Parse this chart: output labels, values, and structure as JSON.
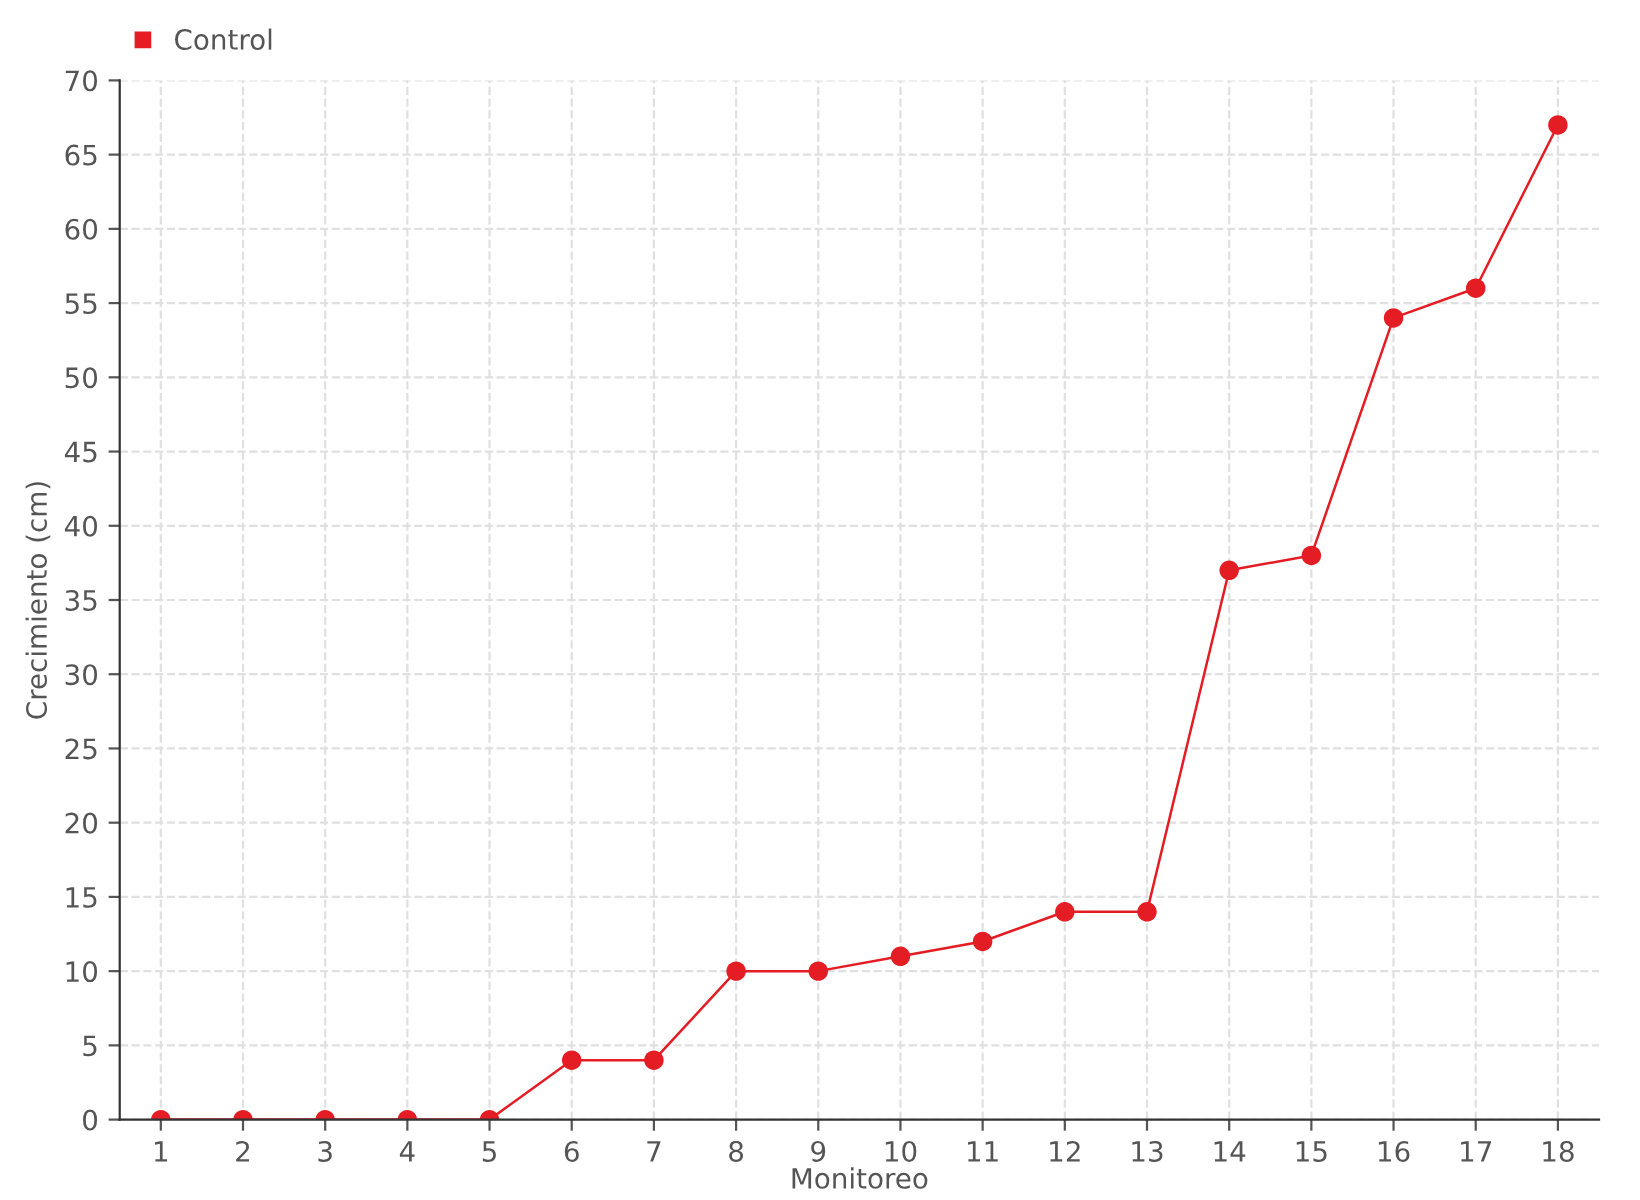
{
  "chart_data": {
    "type": "line",
    "xlabel": "Monitoreo",
    "ylabel": "Crecimiento (cm)",
    "categories": [
      "1",
      "2",
      "3",
      "4",
      "5",
      "6",
      "7",
      "8",
      "9",
      "10",
      "11",
      "12",
      "13",
      "14",
      "15",
      "16",
      "17",
      "18"
    ],
    "series": [
      {
        "name": "Control",
        "color": "#e41c23",
        "values": [
          0,
          0,
          0,
          0,
          0,
          4,
          4,
          10,
          10,
          11,
          12,
          14,
          14,
          37,
          38,
          54,
          56,
          67
        ]
      }
    ],
    "ylim": [
      0,
      70
    ],
    "yticks": [
      0,
      5,
      10,
      15,
      20,
      25,
      30,
      35,
      40,
      45,
      50,
      55,
      60,
      65,
      70
    ],
    "grid": true,
    "legend": "top left",
    "marker": "circle",
    "line_style": "solid"
  }
}
